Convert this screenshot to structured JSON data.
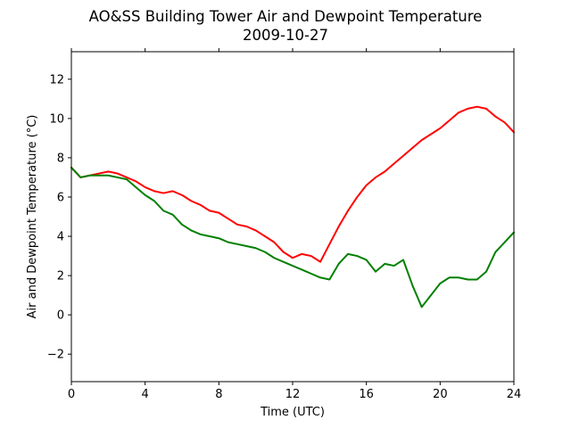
{
  "chart_data": {
    "type": "line",
    "title": "AO&SS Building Tower Air and Dewpoint Temperature",
    "subtitle": "2009-10-27",
    "xlabel": "Time (UTC)",
    "ylabel": "Air and Dewpoint Temperature (°C)",
    "xlim": [
      0,
      24
    ],
    "ylim": [
      -3.4,
      13.4
    ],
    "xticks": [
      0,
      4,
      8,
      12,
      16,
      20,
      24
    ],
    "yticks": [
      -2,
      0,
      2,
      4,
      6,
      8,
      10,
      12
    ],
    "ytick_labels": [
      "−2",
      "0",
      "2",
      "4",
      "6",
      "8",
      "10",
      "12"
    ],
    "grid": false,
    "legend": "none",
    "series": [
      {
        "color": "#ff0000",
        "x": [
          0,
          0.5,
          1,
          1.5,
          2,
          2.5,
          3,
          3.5,
          4,
          4.5,
          5,
          5.5,
          6,
          6.5,
          7,
          7.5,
          8,
          8.5,
          9,
          9.5,
          10,
          10.5,
          11,
          11.5,
          12,
          12.5,
          13,
          13.5,
          14,
          14.5,
          15,
          15.5,
          16,
          16.5,
          17,
          17.5,
          18,
          18.5,
          19,
          19.5,
          20,
          20.5,
          21,
          21.5,
          22,
          22.5,
          23,
          23.5,
          24
        ],
        "y": [
          7.5,
          7.0,
          7.1,
          7.2,
          7.3,
          7.2,
          7.0,
          6.8,
          6.5,
          6.3,
          6.2,
          6.3,
          6.1,
          5.8,
          5.6,
          5.3,
          5.2,
          4.9,
          4.6,
          4.5,
          4.3,
          4.0,
          3.7,
          3.2,
          2.9,
          3.1,
          3.0,
          2.7,
          3.6,
          4.5,
          5.3,
          6.0,
          6.6,
          7.0,
          7.3,
          7.7,
          8.1,
          8.5,
          8.9,
          9.2,
          9.5,
          9.9,
          10.3,
          10.5,
          10.6,
          10.5,
          10.1,
          9.8,
          9.3
        ]
      },
      {
        "color": "#008000",
        "x": [
          0,
          0.5,
          1,
          1.5,
          2,
          2.5,
          3,
          3.5,
          4,
          4.5,
          5,
          5.5,
          6,
          6.5,
          7,
          7.5,
          8,
          8.5,
          9,
          9.5,
          10,
          10.5,
          11,
          11.5,
          12,
          12.5,
          13,
          13.5,
          14,
          14.5,
          15,
          15.5,
          16,
          16.5,
          17,
          17.5,
          18,
          18.5,
          19,
          19.5,
          20,
          20.5,
          21,
          21.5,
          22,
          22.5,
          23,
          23.5,
          24
        ],
        "y": [
          7.5,
          7.0,
          7.1,
          7.1,
          7.1,
          7.0,
          6.9,
          6.5,
          6.1,
          5.8,
          5.3,
          5.1,
          4.6,
          4.3,
          4.1,
          4.0,
          3.9,
          3.7,
          3.6,
          3.5,
          3.4,
          3.2,
          2.9,
          2.7,
          2.5,
          2.3,
          2.1,
          1.9,
          1.8,
          2.6,
          3.1,
          3.0,
          2.8,
          2.2,
          2.6,
          2.5,
          2.8,
          1.5,
          0.4,
          1.0,
          1.6,
          1.9,
          1.9,
          1.8,
          1.8,
          2.2,
          3.2,
          3.7,
          4.2
        ]
      }
    ]
  }
}
